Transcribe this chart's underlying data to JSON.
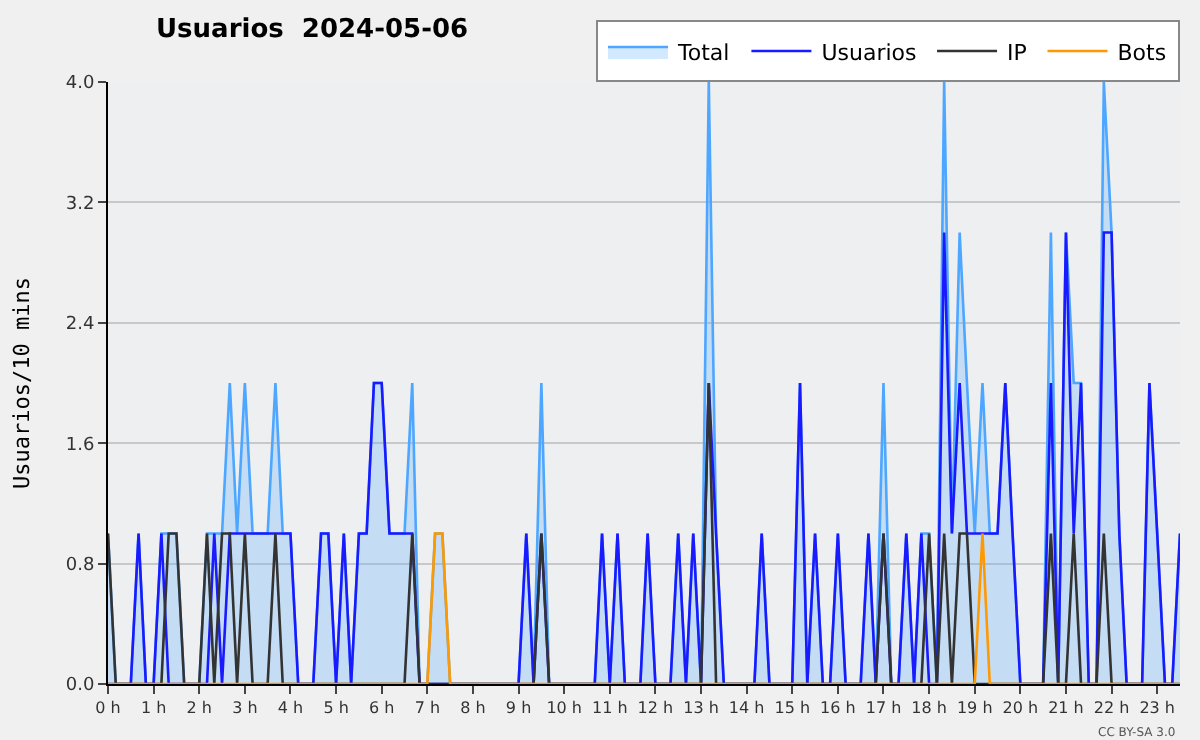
{
  "chart_data": {
    "type": "line",
    "title": "Usuarios  2024-05-06",
    "ylabel": "Usuarios/10 mins",
    "x": [
      0,
      0.17,
      0.33,
      0.5,
      0.67,
      0.83,
      1,
      1.17,
      1.33,
      1.5,
      1.67,
      1.83,
      2,
      2.17,
      2.33,
      2.5,
      2.67,
      2.83,
      3,
      3.17,
      3.33,
      3.5,
      3.67,
      3.83,
      4,
      4.17,
      4.33,
      4.5,
      4.67,
      4.83,
      5,
      5.17,
      5.33,
      5.5,
      5.67,
      5.83,
      6,
      6.17,
      6.33,
      6.5,
      6.67,
      6.83,
      7,
      7.17,
      7.33,
      7.5,
      7.67,
      7.83,
      8,
      8.17,
      8.33,
      8.5,
      8.67,
      8.83,
      9,
      9.17,
      9.33,
      9.5,
      9.67,
      9.83,
      10,
      10.17,
      10.33,
      10.5,
      10.67,
      10.83,
      11,
      11.17,
      11.33,
      11.5,
      11.67,
      11.83,
      12,
      12.17,
      12.33,
      12.5,
      12.67,
      12.83,
      13,
      13.17,
      13.33,
      13.5,
      13.67,
      13.83,
      14,
      14.17,
      14.33,
      14.5,
      14.67,
      14.83,
      15,
      15.17,
      15.33,
      15.5,
      15.67,
      15.83,
      16,
      16.17,
      16.33,
      16.5,
      16.67,
      16.83,
      17,
      17.17,
      17.33,
      17.5,
      17.67,
      17.83,
      18,
      18.17,
      18.33,
      18.5,
      18.67,
      18.83,
      19,
      19.17,
      19.33,
      19.5,
      19.67,
      19.83,
      20,
      20.17,
      20.33,
      20.5,
      20.67,
      20.83,
      21,
      21.17,
      21.33,
      21.5,
      21.67,
      21.83,
      22,
      22.17,
      22.33,
      22.5,
      22.67,
      22.83,
      23,
      23.17,
      23.33,
      23.5
    ],
    "series": [
      {
        "name": "Total",
        "type": "area",
        "color": "#4da6ff",
        "values": [
          1,
          0,
          0,
          0,
          1,
          0,
          0,
          1,
          1,
          1,
          0,
          0,
          0,
          1,
          1,
          1,
          2,
          1,
          2,
          1,
          1,
          1,
          2,
          1,
          1,
          0,
          0,
          0,
          1,
          1,
          0,
          1,
          0,
          1,
          1,
          2,
          2,
          1,
          1,
          1,
          2,
          0,
          0,
          1,
          1,
          0,
          0,
          0,
          0,
          0,
          0,
          0,
          0,
          0,
          0,
          1,
          0,
          2,
          0,
          0,
          0,
          0,
          0,
          0,
          0,
          1,
          0,
          1,
          0,
          0,
          0,
          1,
          0,
          0,
          0,
          1,
          0,
          1,
          0,
          4,
          1,
          0,
          0,
          0,
          0,
          0,
          1,
          0,
          0,
          0,
          0,
          2,
          0,
          1,
          0,
          0,
          1,
          0,
          0,
          0,
          1,
          0,
          2,
          0,
          0,
          1,
          0,
          1,
          1,
          0,
          4,
          1,
          3,
          2,
          1,
          2,
          1,
          1,
          2,
          1,
          0,
          0,
          0,
          0,
          3,
          0,
          3,
          2,
          2,
          0,
          0,
          4,
          3,
          1,
          0,
          0,
          0,
          2,
          1,
          0,
          0,
          1
        ]
      },
      {
        "name": "Usuarios",
        "color": "#1a1aff",
        "values": [
          0,
          0,
          0,
          0,
          1,
          0,
          0,
          1,
          0,
          0,
          0,
          0,
          0,
          0,
          1,
          0,
          1,
          1,
          1,
          1,
          1,
          1,
          1,
          1,
          1,
          0,
          0,
          0,
          1,
          1,
          0,
          1,
          0,
          1,
          1,
          2,
          2,
          1,
          1,
          1,
          1,
          0,
          0,
          0,
          0,
          0,
          0,
          0,
          0,
          0,
          0,
          0,
          0,
          0,
          0,
          1,
          0,
          1,
          0,
          0,
          0,
          0,
          0,
          0,
          0,
          1,
          0,
          1,
          0,
          0,
          0,
          1,
          0,
          0,
          0,
          1,
          0,
          1,
          0,
          2,
          1,
          0,
          0,
          0,
          0,
          0,
          1,
          0,
          0,
          0,
          0,
          2,
          0,
          1,
          0,
          0,
          1,
          0,
          0,
          0,
          1,
          0,
          1,
          0,
          0,
          1,
          0,
          1,
          0,
          0,
          3,
          1,
          2,
          1,
          1,
          1,
          1,
          1,
          2,
          1,
          0,
          0,
          0,
          0,
          2,
          0,
          3,
          1,
          2,
          0,
          0,
          3,
          3,
          1,
          0,
          0,
          0,
          2,
          1,
          0,
          0,
          1
        ]
      },
      {
        "name": "IP",
        "color": "#333333",
        "values": [
          1,
          0,
          0,
          0,
          0,
          0,
          0,
          0,
          1,
          1,
          0,
          0,
          0,
          1,
          0,
          1,
          1,
          0,
          1,
          0,
          0,
          0,
          1,
          0,
          0,
          0,
          0,
          0,
          0,
          0,
          0,
          0,
          0,
          0,
          0,
          0,
          0,
          0,
          0,
          0,
          1,
          0,
          0,
          0,
          0,
          0,
          0,
          0,
          0,
          0,
          0,
          0,
          0,
          0,
          0,
          0,
          0,
          1,
          0,
          0,
          0,
          0,
          0,
          0,
          0,
          0,
          0,
          0,
          0,
          0,
          0,
          0,
          0,
          0,
          0,
          0,
          0,
          0,
          0,
          2,
          0,
          0,
          0,
          0,
          0,
          0,
          0,
          0,
          0,
          0,
          0,
          0,
          0,
          0,
          0,
          0,
          0,
          0,
          0,
          0,
          0,
          0,
          1,
          0,
          0,
          0,
          0,
          0,
          1,
          0,
          1,
          0,
          1,
          1,
          0,
          0,
          0,
          0,
          0,
          0,
          0,
          0,
          0,
          0,
          1,
          0,
          0,
          1,
          0,
          0,
          0,
          1,
          0,
          0,
          0,
          0,
          0,
          0,
          0,
          0,
          0,
          0
        ]
      },
      {
        "name": "Bots",
        "color": "#ff9900",
        "values": [
          0,
          0,
          0,
          0,
          0,
          0,
          0,
          0,
          0,
          0,
          0,
          0,
          0,
          0,
          0,
          0,
          0,
          0,
          0,
          0,
          0,
          0,
          0,
          0,
          0,
          0,
          0,
          0,
          0,
          0,
          0,
          0,
          0,
          0,
          0,
          0,
          0,
          0,
          0,
          0,
          0,
          0,
          0,
          1,
          1,
          0,
          0,
          0,
          0,
          0,
          0,
          0,
          0,
          0,
          0,
          0,
          0,
          0,
          0,
          0,
          0,
          0,
          0,
          0,
          0,
          0,
          0,
          0,
          0,
          0,
          0,
          0,
          0,
          0,
          0,
          0,
          0,
          0,
          0,
          0,
          0,
          0,
          0,
          0,
          0,
          0,
          0,
          0,
          0,
          0,
          0,
          0,
          0,
          0,
          0,
          0,
          0,
          0,
          0,
          0,
          0,
          0,
          0,
          0,
          0,
          0,
          0,
          0,
          0,
          0,
          0,
          0,
          0,
          0,
          0,
          1,
          0,
          0,
          0,
          0,
          0,
          0,
          0,
          0,
          0,
          0,
          0,
          0,
          0,
          0,
          0,
          0,
          0,
          0,
          0,
          0,
          0,
          0,
          0,
          0,
          0,
          0
        ]
      }
    ],
    "xlim": [
      0,
      23.5
    ],
    "xticks": [
      {
        "value": 0,
        "label": "0 h"
      },
      {
        "value": 1,
        "label": "1 h"
      },
      {
        "value": 2,
        "label": "2 h"
      },
      {
        "value": 3,
        "label": "3 h"
      },
      {
        "value": 4,
        "label": "4 h"
      },
      {
        "value": 5,
        "label": "5 h"
      },
      {
        "value": 6,
        "label": "6 h"
      },
      {
        "value": 7,
        "label": "7 h"
      },
      {
        "value": 8,
        "label": "8 h"
      },
      {
        "value": 9,
        "label": "9 h"
      },
      {
        "value": 10,
        "label": "10 h"
      },
      {
        "value": 11,
        "label": "11 h"
      },
      {
        "value": 12,
        "label": "12 h"
      },
      {
        "value": 13,
        "label": "13 h"
      },
      {
        "value": 14,
        "label": "14 h"
      },
      {
        "value": 15,
        "label": "15 h"
      },
      {
        "value": 16,
        "label": "16 h"
      },
      {
        "value": 17,
        "label": "17 h"
      },
      {
        "value": 18,
        "label": "18 h"
      },
      {
        "value": 19,
        "label": "19 h"
      },
      {
        "value": 20,
        "label": "20 h"
      },
      {
        "value": 21,
        "label": "21 h"
      },
      {
        "value": 22,
        "label": "22 h"
      },
      {
        "value": 23,
        "label": "23 h"
      }
    ],
    "ylim": [
      0,
      4
    ],
    "yticks": [
      {
        "value": 0,
        "label": "0.0"
      },
      {
        "value": 0.8,
        "label": "0.8"
      },
      {
        "value": 1.6,
        "label": "1.6"
      },
      {
        "value": 2.4,
        "label": "2.4"
      },
      {
        "value": 3.2,
        "label": "3.2"
      },
      {
        "value": 4,
        "label": "4.0"
      }
    ],
    "grid": "y",
    "legend": "top right",
    "annotations": [
      "CC BY-SA 3.0"
    ]
  }
}
